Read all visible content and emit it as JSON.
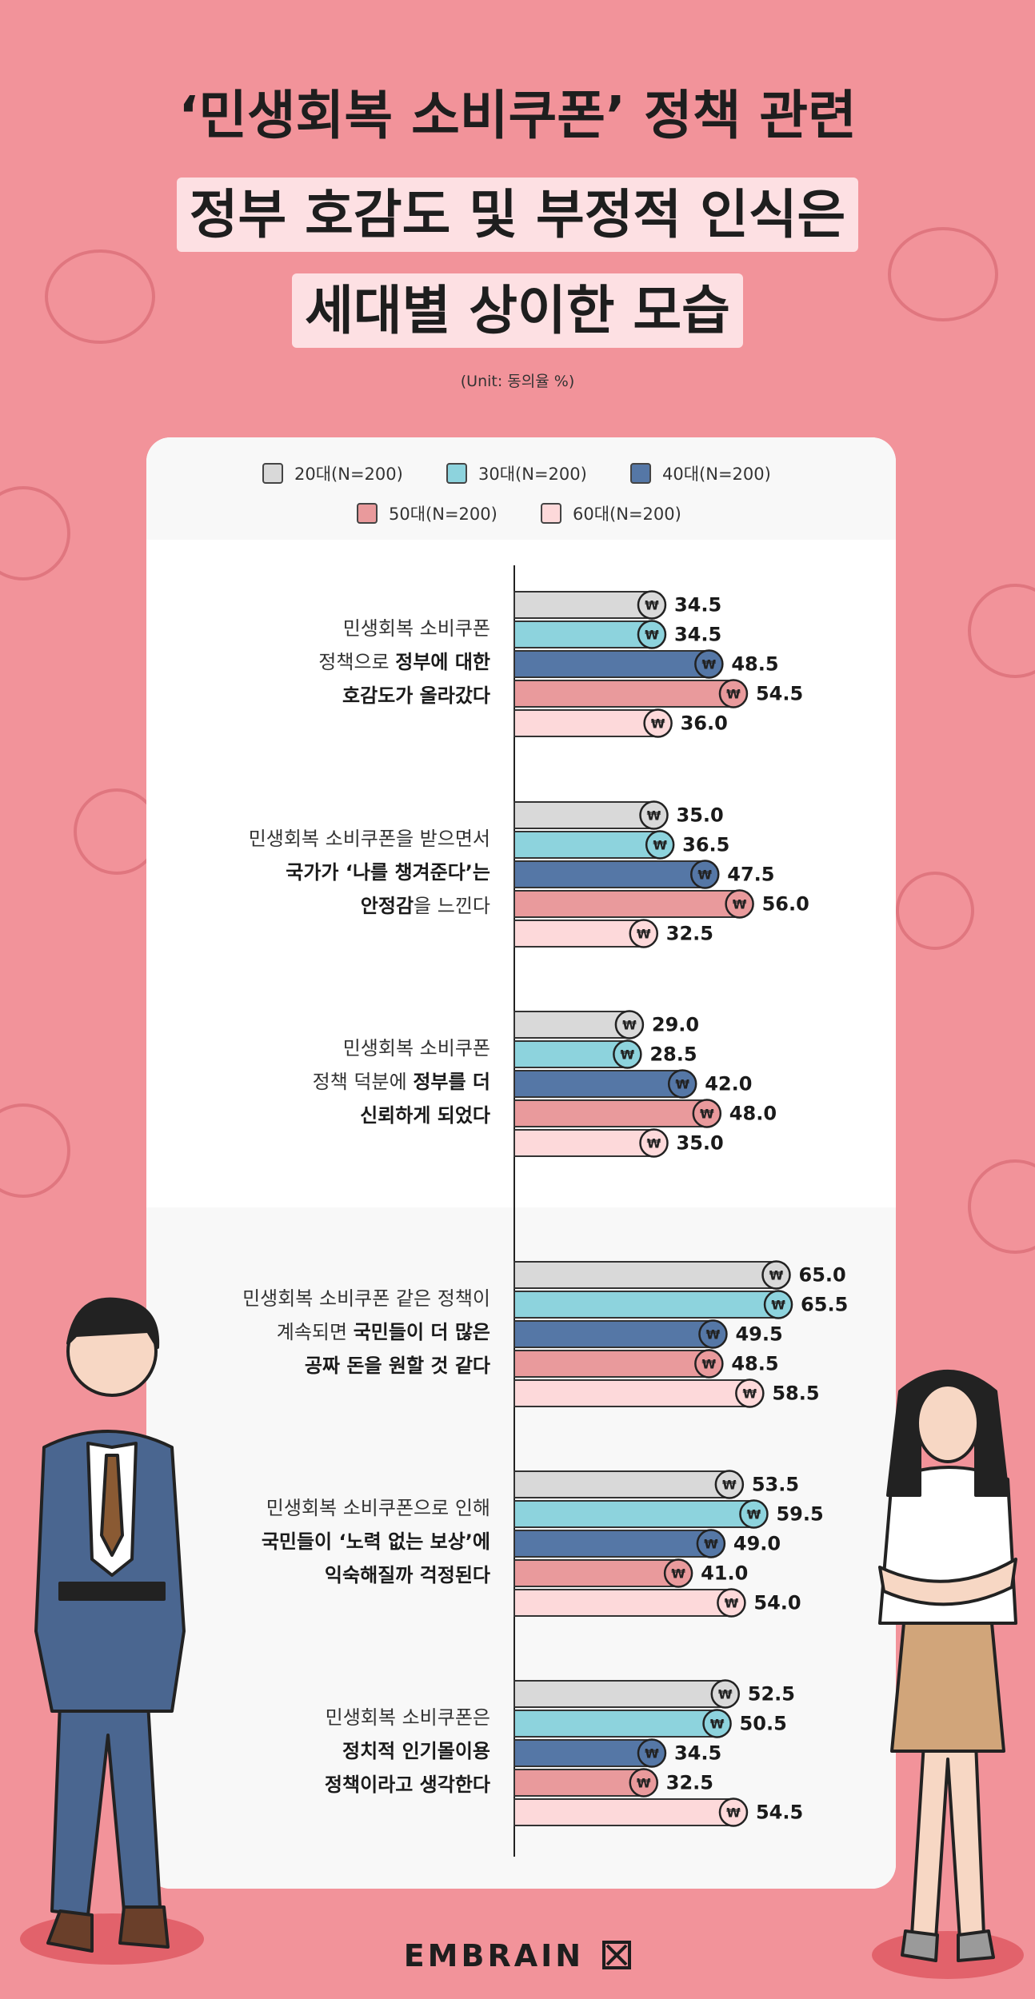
{
  "title": {
    "line1": "‘민생회복 소비쿠폰’ 정책 관련",
    "line2": "정부 호감도 및 부정적 인식은",
    "line3": "세대별 상이한 모습"
  },
  "unit_label": "(Unit: 동의율 %)",
  "brand": "EMBRAIN",
  "colors": {
    "background": "#f2939a",
    "20s": "#d9d9d9",
    "30s": "#8dd3dd",
    "40s": "#5577a6",
    "50s": "#e99a9c",
    "60s": "#fdd9da"
  },
  "chart_data": {
    "type": "bar",
    "orientation": "horizontal",
    "unit": "동의율 %",
    "xlim": [
      0,
      100
    ],
    "legend_position": "top",
    "series": [
      {
        "name": "20대(N=200)",
        "color": "#d9d9d9",
        "values": [
          34.5,
          35.0,
          29.0,
          65.0,
          53.5,
          52.5
        ]
      },
      {
        "name": "30대(N=200)",
        "color": "#8dd3dd",
        "values": [
          34.5,
          36.5,
          28.5,
          65.5,
          59.5,
          50.5
        ]
      },
      {
        "name": "40대(N=200)",
        "color": "#5577a6",
        "values": [
          48.5,
          47.5,
          42.0,
          49.5,
          49.0,
          34.5
        ]
      },
      {
        "name": "50대(N=200)",
        "color": "#e99a9c",
        "values": [
          54.5,
          56.0,
          48.0,
          48.5,
          41.0,
          32.5
        ]
      },
      {
        "name": "60대(N=200)",
        "color": "#fdd9da",
        "values": [
          36.0,
          32.5,
          35.0,
          58.5,
          54.0,
          54.5
        ]
      }
    ],
    "value_labels": [
      [
        "34.5",
        "34.5",
        "48.5",
        "54.5",
        "36.0"
      ],
      [
        "35.0",
        "36.5",
        "47.5",
        "56.0",
        "32.5"
      ],
      [
        "29.0",
        "28.5",
        "42.0",
        "48.0",
        "35.0"
      ],
      [
        "65.0",
        "65.5",
        "49.5",
        "48.5",
        "58.5"
      ],
      [
        "53.5",
        "59.5",
        "49.0",
        "41.0",
        "54.0"
      ],
      [
        "52.5",
        "50.5",
        "34.5",
        "32.5",
        "54.5"
      ]
    ],
    "categories": [
      {
        "lines": [
          [
            {
              "t": "민생회복 소비쿠폰",
              "b": false
            }
          ],
          [
            {
              "t": "정책으로 ",
              "b": false
            },
            {
              "t": "정부에 대한",
              "b": true
            }
          ],
          [
            {
              "t": "호감도가 올라갔다",
              "b": true
            }
          ]
        ]
      },
      {
        "lines": [
          [
            {
              "t": "민생회복 소비쿠폰을 받으면서",
              "b": false
            }
          ],
          [
            {
              "t": "국가가 ‘나를 챙겨준다’는",
              "b": true
            }
          ],
          [
            {
              "t": "안정감",
              "b": true
            },
            {
              "t": "을 느낀다",
              "b": false
            }
          ]
        ]
      },
      {
        "lines": [
          [
            {
              "t": "민생회복 소비쿠폰",
              "b": false
            }
          ],
          [
            {
              "t": "정책 덕분에 ",
              "b": false
            },
            {
              "t": "정부를 더",
              "b": true
            }
          ],
          [
            {
              "t": "신뢰하게 되었다",
              "b": true
            }
          ]
        ]
      },
      {
        "lines": [
          [
            {
              "t": "민생회복 소비쿠폰 같은 정책이",
              "b": false
            }
          ],
          [
            {
              "t": "계속되면 ",
              "b": false
            },
            {
              "t": "국민들이 더 많은",
              "b": true
            }
          ],
          [
            {
              "t": "공짜 돈을 원할 것 같다",
              "b": true
            }
          ]
        ]
      },
      {
        "lines": [
          [
            {
              "t": "민생회복 소비쿠폰으로 인해",
              "b": false
            }
          ],
          [
            {
              "t": "국민들이 ‘노력 없는 보상’에",
              "b": true
            }
          ],
          [
            {
              "t": "익숙해질까 걱정된다",
              "b": true
            }
          ]
        ]
      },
      {
        "lines": [
          [
            {
              "t": "민생회복 소비쿠폰은",
              "b": false
            }
          ],
          [
            {
              "t": "정치적 인기몰이용",
              "b": true
            }
          ],
          [
            {
              "t": "정책이라고 생각한다",
              "b": true
            }
          ]
        ]
      }
    ],
    "marker_icon": "won-coin-icon"
  }
}
